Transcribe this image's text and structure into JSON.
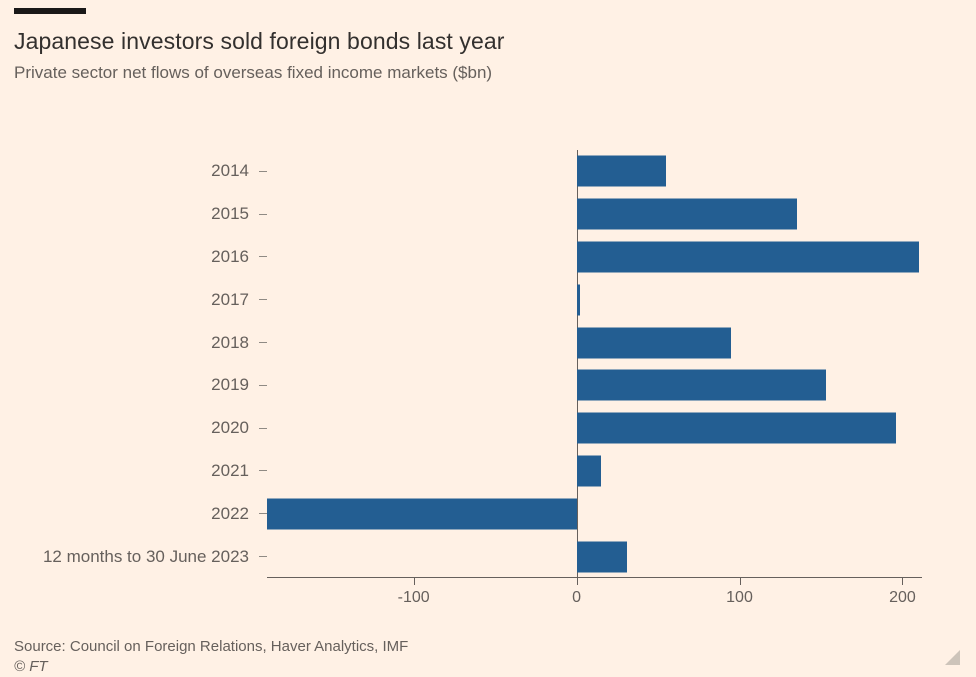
{
  "page": {
    "background": "#FFF1E5"
  },
  "header": {
    "title": "Japanese investors sold foreign bonds last year",
    "subtitle": "Private sector net flows of overseas fixed income markets ($bn)"
  },
  "footer": {
    "source": "Source: Council on Foreign Relations, Haver Analytics, IMF",
    "copyright": "© FT"
  },
  "chart_data": {
    "type": "bar",
    "orientation": "horizontal",
    "title": "Japanese investors sold foreign bonds last year",
    "subtitle": "Private sector net flows of overseas fixed income markets ($bn)",
    "unit": "$bn",
    "categories": [
      "2014",
      "2015",
      "2016",
      "2017",
      "2018",
      "2019",
      "2020",
      "2021",
      "2022",
      "12 months to 30 June 2023"
    ],
    "values": [
      55,
      135,
      210,
      2,
      95,
      153,
      196,
      15,
      -190,
      31
    ],
    "xlim": [
      -190,
      212
    ],
    "x_ticks": [
      -100,
      0,
      100,
      200
    ],
    "x_tick_labels": [
      "-100",
      "0",
      "100",
      "200"
    ],
    "bar_color": "#235E92",
    "axis_color": "#66605C",
    "zero_line": true,
    "grid": false,
    "legend_position": "none"
  }
}
